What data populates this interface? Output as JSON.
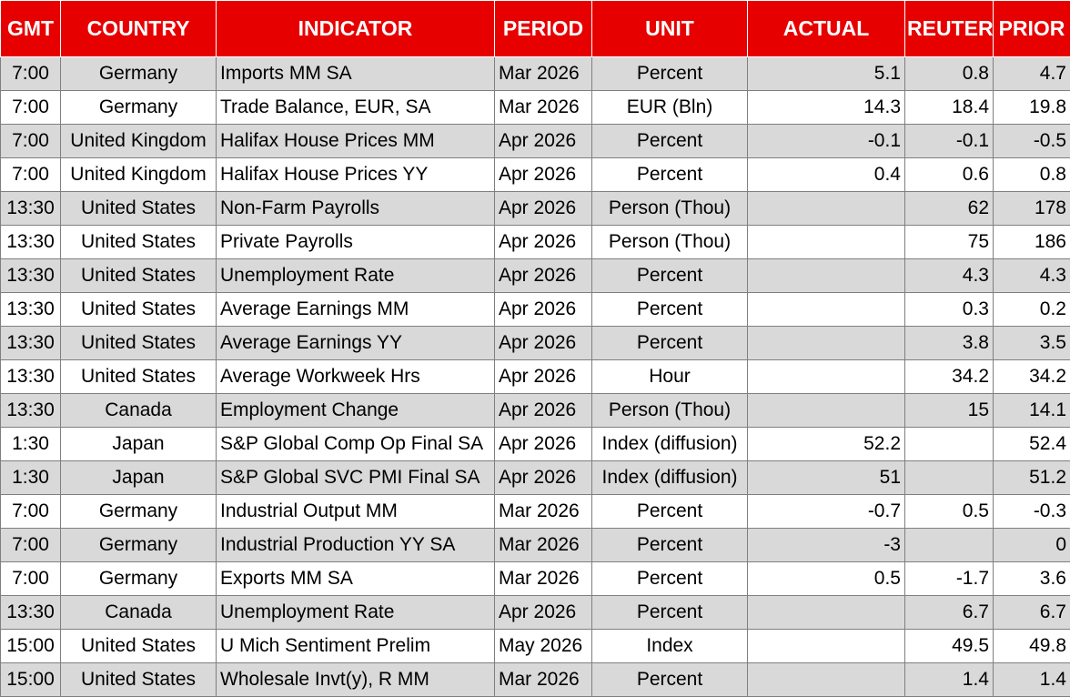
{
  "headers": [
    "GMT",
    "COUNTRY",
    "INDICATOR",
    "PERIOD",
    "UNIT",
    "ACTUAL",
    "REUTERS POLL",
    "PRIOR"
  ],
  "rows": [
    {
      "gmt": "7:00",
      "country": "Germany",
      "indicator": "Imports MM SA",
      "period": "Mar 2026",
      "unit": "Percent",
      "actual": "5.1",
      "poll": "0.8",
      "prior": "4.7"
    },
    {
      "gmt": "7:00",
      "country": "Germany",
      "indicator": "Trade Balance, EUR, SA",
      "period": "Mar 2026",
      "unit": "EUR (Bln)",
      "actual": "14.3",
      "poll": "18.4",
      "prior": "19.8"
    },
    {
      "gmt": "7:00",
      "country": "United Kingdom",
      "indicator": "Halifax House Prices MM",
      "period": "Apr 2026",
      "unit": "Percent",
      "actual": "-0.1",
      "poll": "-0.1",
      "prior": "-0.5"
    },
    {
      "gmt": "7:00",
      "country": "United Kingdom",
      "indicator": "Halifax House Prices YY",
      "period": "Apr 2026",
      "unit": "Percent",
      "actual": "0.4",
      "poll": "0.6",
      "prior": "0.8"
    },
    {
      "gmt": "13:30",
      "country": "United States",
      "indicator": "Non-Farm Payrolls",
      "period": "Apr 2026",
      "unit": "Person (Thou)",
      "actual": "",
      "poll": "62",
      "prior": "178"
    },
    {
      "gmt": "13:30",
      "country": "United States",
      "indicator": "Private Payrolls",
      "period": "Apr 2026",
      "unit": "Person (Thou)",
      "actual": "",
      "poll": "75",
      "prior": "186"
    },
    {
      "gmt": "13:30",
      "country": "United States",
      "indicator": "Unemployment Rate",
      "period": "Apr 2026",
      "unit": "Percent",
      "actual": "",
      "poll": "4.3",
      "prior": "4.3"
    },
    {
      "gmt": "13:30",
      "country": "United States",
      "indicator": "Average Earnings MM",
      "period": "Apr 2026",
      "unit": "Percent",
      "actual": "",
      "poll": "0.3",
      "prior": "0.2"
    },
    {
      "gmt": "13:30",
      "country": "United States",
      "indicator": "Average Earnings YY",
      "period": "Apr 2026",
      "unit": "Percent",
      "actual": "",
      "poll": "3.8",
      "prior": "3.5"
    },
    {
      "gmt": "13:30",
      "country": "United States",
      "indicator": "Average Workweek Hrs",
      "period": "Apr 2026",
      "unit": "Hour",
      "actual": "",
      "poll": "34.2",
      "prior": "34.2"
    },
    {
      "gmt": "13:30",
      "country": "Canada",
      "indicator": "Employment Change",
      "period": "Apr 2026",
      "unit": "Person (Thou)",
      "actual": "",
      "poll": "15",
      "prior": "14.1"
    },
    {
      "gmt": "1:30",
      "country": "Japan",
      "indicator": "S&P Global Comp Op Final SA",
      "period": "Apr 2026",
      "unit": "Index (diffusion)",
      "actual": "52.2",
      "poll": "",
      "prior": "52.4"
    },
    {
      "gmt": "1:30",
      "country": "Japan",
      "indicator": "S&P Global SVC PMI Final SA",
      "period": "Apr 2026",
      "unit": "Index (diffusion)",
      "actual": "51",
      "poll": "",
      "prior": "51.2"
    },
    {
      "gmt": "7:00",
      "country": "Germany",
      "indicator": "Industrial Output MM",
      "period": "Mar 2026",
      "unit": "Percent",
      "actual": "-0.7",
      "poll": "0.5",
      "prior": "-0.3"
    },
    {
      "gmt": "7:00",
      "country": "Germany",
      "indicator": "Industrial Production YY SA",
      "period": "Mar 2026",
      "unit": "Percent",
      "actual": "-3",
      "poll": "",
      "prior": "0"
    },
    {
      "gmt": "7:00",
      "country": "Germany",
      "indicator": "Exports MM SA",
      "period": "Mar 2026",
      "unit": "Percent",
      "actual": "0.5",
      "poll": "-1.7",
      "prior": "3.6"
    },
    {
      "gmt": "13:30",
      "country": "Canada",
      "indicator": "Unemployment Rate",
      "period": "Apr 2026",
      "unit": "Percent",
      "actual": "",
      "poll": "6.7",
      "prior": "6.7"
    },
    {
      "gmt": "15:00",
      "country": "United States",
      "indicator": "U Mich Sentiment Prelim",
      "period": "May 2026",
      "unit": "Index",
      "actual": "",
      "poll": "49.5",
      "prior": "49.8"
    },
    {
      "gmt": "15:00",
      "country": "United States",
      "indicator": "Wholesale Invt(y), R MM",
      "period": "Mar 2026",
      "unit": "Percent",
      "actual": "",
      "poll": "1.4",
      "prior": "1.4"
    }
  ],
  "colors": {
    "header_bg": "#e60000",
    "header_text": "#ffffff",
    "row_shade": "#d9d9d9",
    "row_plain": "#ffffff"
  }
}
